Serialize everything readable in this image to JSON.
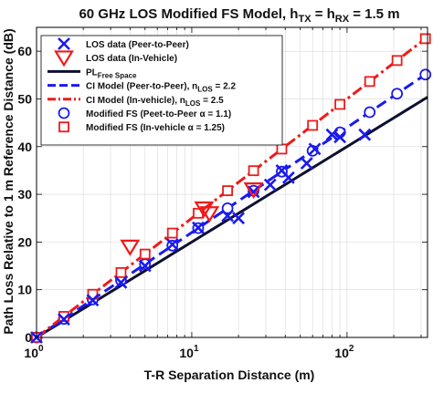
{
  "chart_data": {
    "type": "line",
    "title": "60 GHz LOS Modified FS Model, h",
    "title_sub1": "TX",
    "title_mid": " = h",
    "title_sub2": "RX",
    "title_end": " = 1.5 m",
    "xlabel": "T-R Separation Distance (m)",
    "ylabel": "Path Loss Relative to 1 m Reference Distance (dB)",
    "xscale": "log",
    "xlim": [
      1,
      330
    ],
    "ylim": [
      0,
      65
    ],
    "xticks": [
      1,
      10,
      100
    ],
    "xtick_labels": [
      "10",
      "10",
      "10"
    ],
    "xtick_exponents": [
      "0",
      "1",
      "2"
    ],
    "yticks": [
      0,
      10,
      20,
      30,
      40,
      50,
      60
    ],
    "ytick_labels": [
      "0",
      "10",
      "20",
      "30",
      "40",
      "50",
      "60"
    ],
    "grid": true,
    "legend_position": "top-left",
    "series": [
      {
        "key": "los_p2p",
        "name": "LOS data (Peer-to-Peer)",
        "color": "#1a1aee",
        "marker": "x",
        "points": [
          [
            1,
            0
          ],
          [
            1.5,
            3.8
          ],
          [
            2.3,
            7.8
          ],
          [
            3.5,
            11.5
          ],
          [
            5,
            15
          ],
          [
            7.5,
            19.5
          ],
          [
            11,
            23
          ],
          [
            17,
            25.5
          ],
          [
            20,
            25
          ],
          [
            25,
            30.5
          ],
          [
            32,
            32
          ],
          [
            38,
            35
          ],
          [
            42,
            33.5
          ],
          [
            55,
            36.5
          ],
          [
            62,
            39.5
          ],
          [
            80,
            42.5
          ],
          [
            90,
            42
          ],
          [
            130,
            42.5
          ]
        ]
      },
      {
        "key": "los_iv",
        "name": "LOS data (In-Vehicle)",
        "color": "#ee1a1a",
        "marker": "triangle-down",
        "points": [
          [
            4,
            19
          ],
          [
            12,
            27
          ],
          [
            13,
            26
          ],
          [
            25,
            31
          ]
        ]
      },
      {
        "key": "pl_fs",
        "name": "PL",
        "name_sub": "Free Space",
        "color": "#0d1030",
        "style": "solid",
        "n": 2.0
      },
      {
        "key": "ci_p2p",
        "name": "CI Model (Peer-to-Peer), n",
        "name_sub": "LOS",
        "name_end": " = 2.2",
        "color": "#1a1aee",
        "style": "dashed",
        "n": 2.2
      },
      {
        "key": "ci_iv",
        "name": "CI Model (In-vehicle), n",
        "name_sub": "LOS",
        "name_end": " = 2.5",
        "color": "#ee1a1a",
        "style": "dashdot",
        "n": 2.5
      },
      {
        "key": "mfs_p2p",
        "name": "Modified FS (Peet-to-Peer α = 1.1)",
        "color": "#1a1aee",
        "marker": "circle",
        "n": 2.2
      },
      {
        "key": "mfs_iv",
        "name": "Modified FS (In-vehicle α = 1.25)",
        "color": "#ee1a1a",
        "marker": "square",
        "n": 2.5
      }
    ],
    "model_marker_x": [
      1,
      1.5,
      2.3,
      3.5,
      5,
      7.5,
      11,
      17,
      25,
      38,
      60,
      90,
      140,
      210,
      320
    ]
  }
}
